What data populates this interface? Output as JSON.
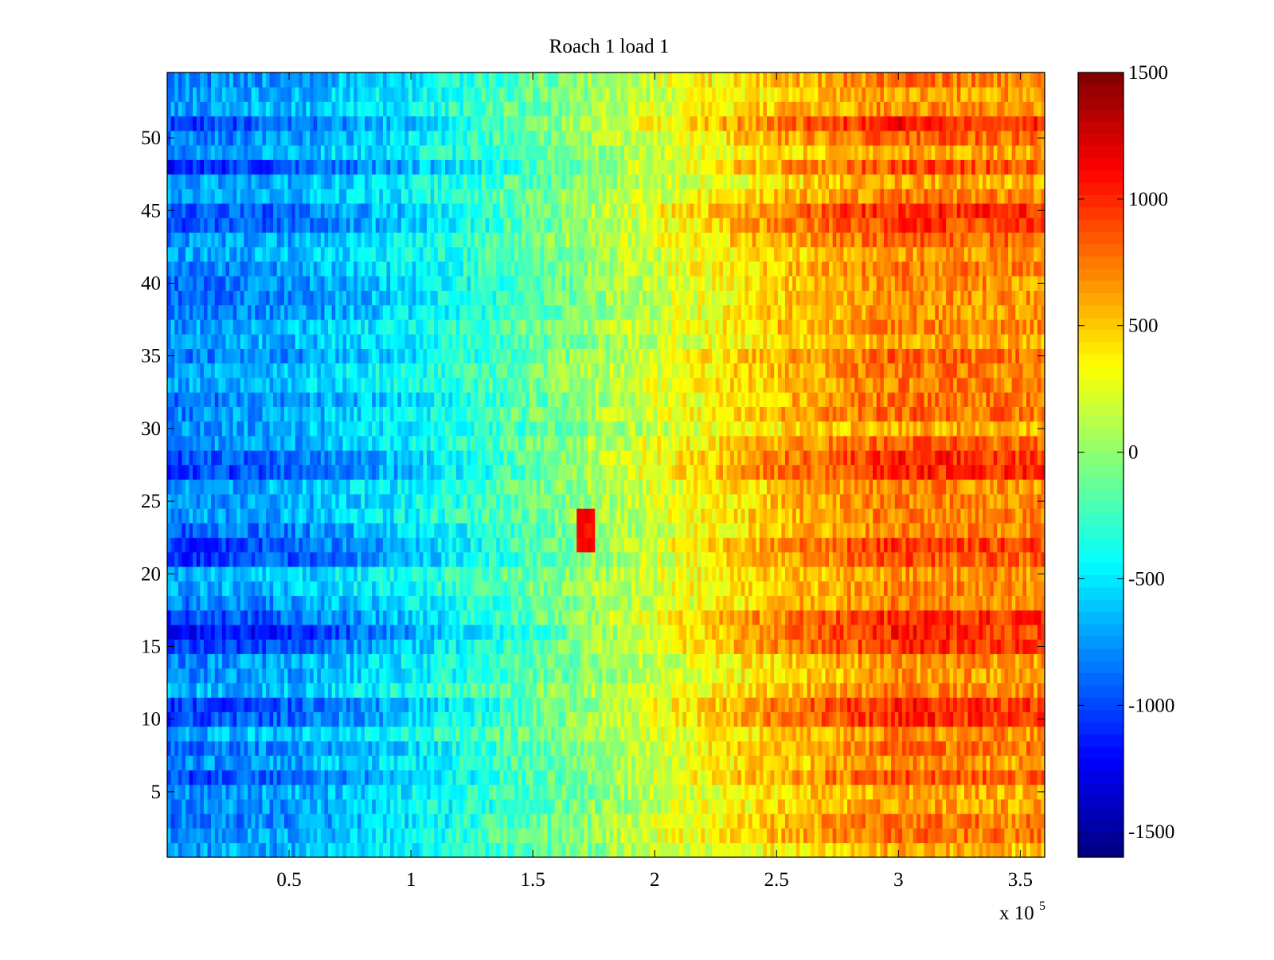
{
  "chart_data": {
    "type": "heatmap",
    "title": "Roach 1 load 1",
    "xlabel": "",
    "ylabel": "",
    "x_scale_label": {
      "base": "x 10",
      "exponent": "5"
    },
    "xlim": [
      0,
      3.6
    ],
    "ylim": [
      0.5,
      54.5
    ],
    "x_ticks": [
      {
        "value": 0.5,
        "label": "0.5"
      },
      {
        "value": 1,
        "label": "1"
      },
      {
        "value": 1.5,
        "label": "1.5"
      },
      {
        "value": 2,
        "label": "2"
      },
      {
        "value": 2.5,
        "label": "2.5"
      },
      {
        "value": 3,
        "label": "3"
      },
      {
        "value": 3.5,
        "label": "3.5"
      }
    ],
    "y_ticks": [
      {
        "value": 5,
        "label": "5"
      },
      {
        "value": 10,
        "label": "10"
      },
      {
        "value": 15,
        "label": "15"
      },
      {
        "value": 20,
        "label": "20"
      },
      {
        "value": 25,
        "label": "25"
      },
      {
        "value": 30,
        "label": "30"
      },
      {
        "value": 35,
        "label": "35"
      },
      {
        "value": 40,
        "label": "40"
      },
      {
        "value": 45,
        "label": "45"
      },
      {
        "value": 50,
        "label": "50"
      }
    ],
    "rows": 54,
    "colormap": "jet",
    "clim": [
      -1600,
      1500
    ],
    "colorbar_ticks": [
      {
        "value": 1500,
        "label": "1500"
      },
      {
        "value": 1000,
        "label": "1000"
      },
      {
        "value": 500,
        "label": "500"
      },
      {
        "value": 0,
        "label": "0"
      },
      {
        "value": -500,
        "label": "-500"
      },
      {
        "value": -1000,
        "label": "-1000"
      },
      {
        "value": -1500,
        "label": "-1500"
      }
    ],
    "trend_profile": {
      "x": [
        0,
        0.5,
        1.0,
        1.5,
        2.0,
        2.5,
        3.0,
        3.6
      ],
      "mean_value": [
        -820,
        -720,
        -480,
        -150,
        200,
        520,
        740,
        690
      ]
    },
    "strong_rows": [
      {
        "row": 51,
        "gain": 1.35
      },
      {
        "row": 48,
        "gain": 1.3
      },
      {
        "row": 45,
        "gain": 1.3
      },
      {
        "row": 44,
        "gain": 1.25
      },
      {
        "row": 28,
        "gain": 1.3
      },
      {
        "row": 27,
        "gain": 1.35
      },
      {
        "row": 22,
        "gain": 1.3
      },
      {
        "row": 21,
        "gain": 1.25
      },
      {
        "row": 17,
        "gain": 1.3
      },
      {
        "row": 16,
        "gain": 1.45
      },
      {
        "row": 15,
        "gain": 1.3
      },
      {
        "row": 11,
        "gain": 1.35
      },
      {
        "row": 10,
        "gain": 1.3
      },
      {
        "row": 6,
        "gain": 1.2
      }
    ],
    "anomaly": {
      "x_range": [
        1.68,
        1.75
      ],
      "rows": [
        22,
        23,
        24
      ],
      "value": 1100
    }
  }
}
